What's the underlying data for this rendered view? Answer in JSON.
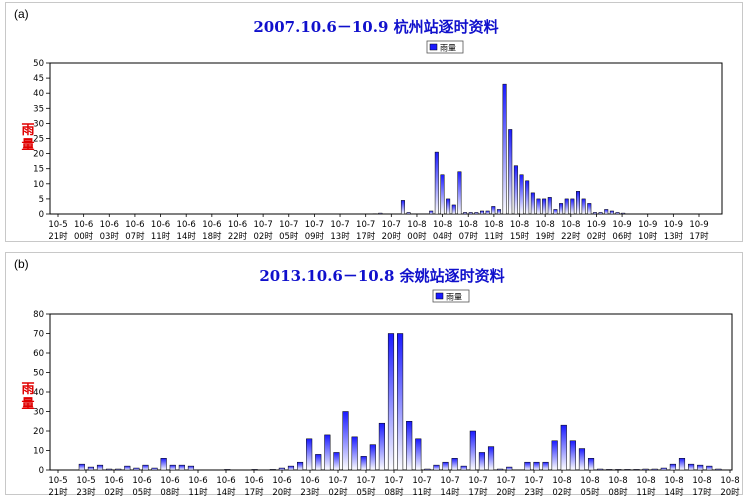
{
  "chart_data": [
    {
      "type": "bar",
      "panel_label": "(a)",
      "title": "2007.10.6－10.9 杭州站逐时资料",
      "ylabel": "雨量",
      "legend": "雨量",
      "legend_position": "top-right",
      "ylim": [
        0,
        50
      ],
      "yticks": [
        0,
        5,
        10,
        15,
        20,
        25,
        30,
        35,
        40,
        45,
        50
      ],
      "grid": false,
      "color": "#1a1aff",
      "x_tick_labels": [
        [
          "10-5",
          "21时"
        ],
        [
          "10-6",
          "00时"
        ],
        [
          "10-6",
          "03时"
        ],
        [
          "10-6",
          "07时"
        ],
        [
          "10-6",
          "11时"
        ],
        [
          "10-6",
          "14时"
        ],
        [
          "10-6",
          "18时"
        ],
        [
          "10-6",
          "22时"
        ],
        [
          "10-7",
          "02时"
        ],
        [
          "10-7",
          "05时"
        ],
        [
          "10-7",
          "09时"
        ],
        [
          "10-7",
          "13时"
        ],
        [
          "10-7",
          "17时"
        ],
        [
          "10-7",
          "20时"
        ],
        [
          "10-8",
          "00时"
        ],
        [
          "10-8",
          "04时"
        ],
        [
          "10-8",
          "07时"
        ],
        [
          "10-8",
          "11时"
        ],
        [
          "10-8",
          "15时"
        ],
        [
          "10-8",
          "19时"
        ],
        [
          "10-8",
          "22时"
        ],
        [
          "10-9",
          "02时"
        ],
        [
          "10-9",
          "06时"
        ],
        [
          "10-9",
          "10时"
        ],
        [
          "10-9",
          "13时"
        ],
        [
          "10-9",
          "17时"
        ]
      ],
      "values": [
        0,
        0,
        0,
        0,
        0,
        0,
        0,
        0,
        0,
        0,
        0,
        0,
        0,
        0,
        0,
        0,
        0,
        0,
        0,
        0,
        0,
        0,
        0,
        0,
        0,
        0,
        0,
        0,
        0,
        0,
        0,
        0,
        0,
        0,
        0,
        0,
        0,
        0,
        0,
        0,
        0,
        0,
        0,
        0,
        0,
        0,
        0,
        0,
        0,
        0,
        0,
        0,
        0,
        0,
        0,
        0,
        0,
        0.1,
        0.3,
        0,
        0,
        0,
        4.5,
        0.5,
        0,
        0,
        0,
        1,
        20.5,
        13,
        5,
        3,
        14,
        0.5,
        0.5,
        0.5,
        1,
        1,
        2.5,
        1.5,
        43,
        28,
        16,
        13,
        11,
        7,
        5,
        5,
        5.5,
        1.5,
        3.5,
        5,
        5,
        7.5,
        5,
        3.5,
        0.5,
        0.5,
        1.5,
        1,
        0.5,
        0.3,
        0,
        0,
        0,
        0,
        0,
        0,
        0,
        0,
        0,
        0,
        0,
        0,
        0,
        0,
        0,
        0,
        0
      ]
    },
    {
      "type": "bar",
      "panel_label": "(b)",
      "title": "2013.10.6－10.8 余姚站逐时资料",
      "ylabel": "雨量",
      "legend": "雨量",
      "legend_position": "top-right",
      "ylim": [
        0,
        80
      ],
      "yticks": [
        0,
        10,
        20,
        30,
        40,
        50,
        60,
        70,
        80
      ],
      "grid": false,
      "color": "#1a1aff",
      "x_tick_labels": [
        [
          "10-5",
          "21时"
        ],
        [
          "10-5",
          "23时"
        ],
        [
          "10-6",
          "02时"
        ],
        [
          "10-6",
          "05时"
        ],
        [
          "10-6",
          "08时"
        ],
        [
          "10-6",
          "11时"
        ],
        [
          "10-6",
          "14时"
        ],
        [
          "10-6",
          "17时"
        ],
        [
          "10-6",
          "20时"
        ],
        [
          "10-6",
          "23时"
        ],
        [
          "10-7",
          "02时"
        ],
        [
          "10-7",
          "05时"
        ],
        [
          "10-7",
          "08时"
        ],
        [
          "10-7",
          "11时"
        ],
        [
          "10-7",
          "14时"
        ],
        [
          "10-7",
          "17时"
        ],
        [
          "10-7",
          "20时"
        ],
        [
          "10-7",
          "23时"
        ],
        [
          "10-8",
          "02时"
        ],
        [
          "10-8",
          "05时"
        ],
        [
          "10-8",
          "08时"
        ],
        [
          "10-8",
          "11时"
        ],
        [
          "10-8",
          "14时"
        ],
        [
          "10-8",
          "17时"
        ],
        [
          "10-8",
          "20时"
        ]
      ],
      "values": [
        0,
        0,
        0,
        3,
        1.5,
        2.5,
        0.5,
        0.5,
        2,
        1,
        2.5,
        1,
        6,
        2.5,
        2.5,
        2,
        0,
        0,
        0,
        0.3,
        0,
        0,
        0.3,
        0,
        0.3,
        1,
        2,
        4,
        16,
        8,
        18,
        9,
        30,
        17,
        7,
        13,
        24,
        70,
        70,
        25,
        16,
        0.5,
        2.5,
        4,
        6,
        2,
        20,
        9,
        12,
        0.5,
        1.5,
        0,
        4,
        4,
        4,
        15,
        23,
        15,
        11,
        6,
        0.5,
        0.3,
        0.3,
        0.3,
        0.3,
        0.5,
        0.5,
        1,
        3,
        6,
        3,
        2.5,
        2,
        0.5,
        0
      ]
    }
  ]
}
